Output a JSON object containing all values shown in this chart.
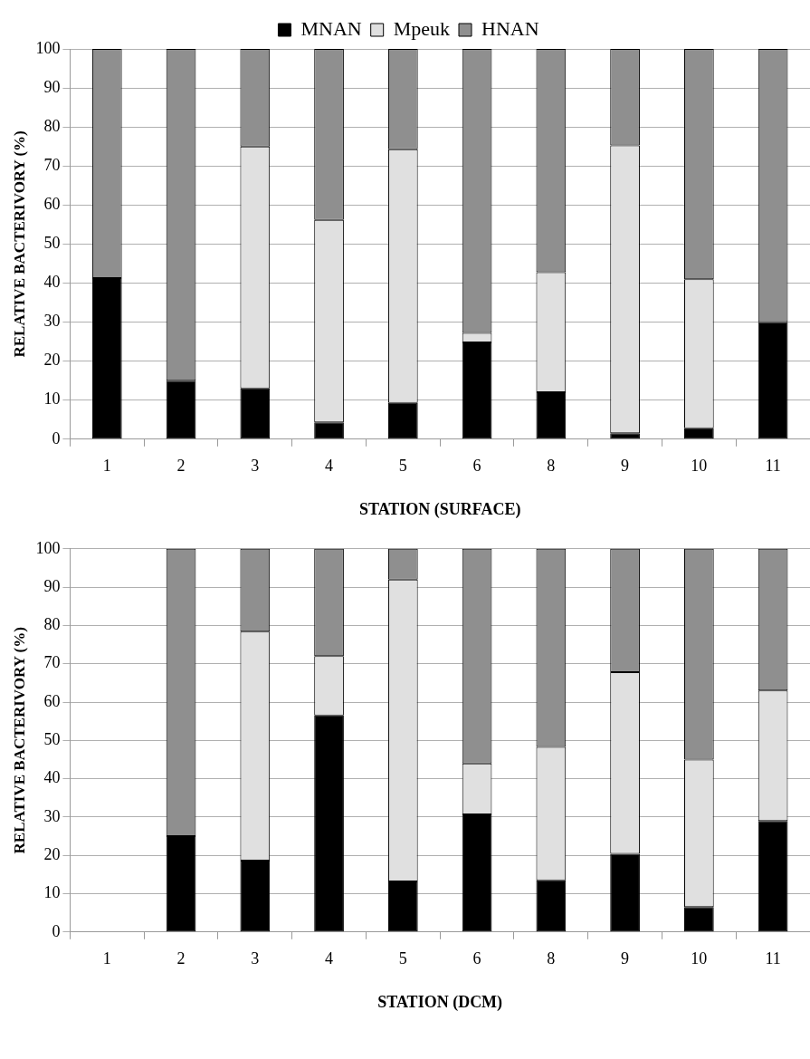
{
  "chart_data": [
    {
      "type": "bar",
      "stacked": true,
      "xlabel": "STATION (SURFACE)",
      "ylabel": "RELATIVE BACTERIVORY (%)",
      "categories": [
        "1",
        "2",
        "3",
        "4",
        "5",
        "6",
        "8",
        "9",
        "10",
        "11"
      ],
      "series": [
        {
          "name": "MNAN",
          "color": "#000000",
          "values": [
            41.3,
            15,
            13,
            4.3,
            9.3,
            24.8,
            12,
            1.5,
            2.8,
            30
          ]
        },
        {
          "name": "Mpeuk",
          "color": "#e0e0e0",
          "values": [
            0,
            0,
            62,
            51.9,
            65,
            2.4,
            30.8,
            73.8,
            38.2,
            0
          ]
        },
        {
          "name": "HNAN",
          "color": "#8f8f8f",
          "values": [
            58.7,
            85,
            25,
            43.8,
            25.7,
            72.8,
            57.2,
            24.7,
            59,
            70
          ]
        }
      ],
      "ylim": [
        0,
        100
      ],
      "yticks": [
        0,
        10,
        20,
        30,
        40,
        50,
        60,
        70,
        80,
        90,
        100
      ],
      "grid": "y",
      "legend": "top"
    },
    {
      "type": "bar",
      "stacked": true,
      "xlabel": "STATION (DCM)",
      "ylabel": "RELATIVE BACTERIVORY (%)",
      "categories": [
        "1",
        "2",
        "3",
        "4",
        "5",
        "6",
        "8",
        "9",
        "10",
        "11"
      ],
      "series": [
        {
          "color": "#000000",
          "values": [
            null,
            25,
            18.6,
            56.5,
            13.2,
            30.7,
            13.5,
            20.4,
            6.5,
            29
          ]
        },
        {
          "color": "#e0e0e0",
          "values": [
            null,
            0,
            59.8,
            15.5,
            78.8,
            13.3,
            34.8,
            47.4,
            38.5,
            34
          ]
        },
        {
          "color": "#8f8f8f",
          "values": [
            null,
            75,
            21.6,
            28,
            8,
            56,
            51.7,
            32.2,
            55,
            37
          ]
        }
      ],
      "ylim": [
        0,
        100
      ],
      "yticks": [
        0,
        10,
        20,
        30,
        40,
        50,
        60,
        70,
        80,
        90,
        100
      ],
      "grid": "y",
      "legend": false
    }
  ]
}
